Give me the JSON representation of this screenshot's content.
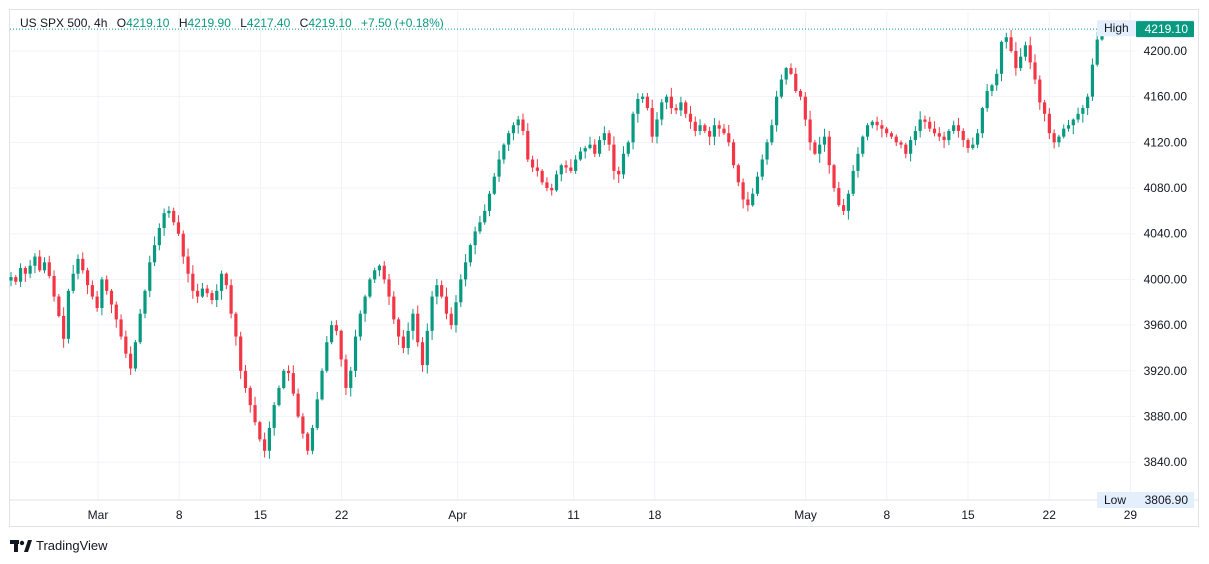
{
  "legend": {
    "symbol": "US SPX 500, 4h",
    "open_label": "O",
    "open": "4219.10",
    "high_label": "H",
    "high": "4219.90",
    "low_label": "L",
    "low": "4217.40",
    "close_label": "C",
    "close": "4219.10",
    "change": "+7.50 (+0.18%)"
  },
  "footer": {
    "brand": "TradingView"
  },
  "colors": {
    "up": "#089981",
    "down": "#f23645",
    "grid": "#f0f3fa",
    "axis_text": "#131722",
    "label_bg": "#e3effd"
  },
  "chart_data": {
    "type": "candlestick",
    "ylim": [
      3806.9,
      4235
    ],
    "y_ticks": [
      "3840.00",
      "3880.00",
      "3920.00",
      "3960.00",
      "4000.00",
      "4040.00",
      "4080.00",
      "4120.00",
      "4160.00",
      "4200.00"
    ],
    "x_ticks": [
      {
        "label": "Mar",
        "day": 0
      },
      {
        "label": "8",
        "day": 7
      },
      {
        "label": "15",
        "day": 14
      },
      {
        "label": "22",
        "day": 21
      },
      {
        "label": "Apr",
        "day": 31
      },
      {
        "label": "11",
        "day": 41
      },
      {
        "label": "18",
        "day": 48
      },
      {
        "label": "May",
        "day": 61
      },
      {
        "label": "8",
        "day": 68
      },
      {
        "label": "15",
        "day": 75
      },
      {
        "label": "22",
        "day": 82
      },
      {
        "label": "29",
        "day": 89
      }
    ],
    "high_label": "High",
    "high_value": "4219.90",
    "low_label": "Low",
    "low_value": "3806.90",
    "last_price": "4219.10",
    "closes": [
      4002,
      3998,
      4010,
      4005,
      4012,
      4020,
      4008,
      4015,
      4003,
      3985,
      3968,
      3948,
      3990,
      4005,
      4018,
      4008,
      3995,
      3985,
      3975,
      4000,
      3990,
      3978,
      3965,
      3950,
      3935,
      3922,
      3945,
      3970,
      3990,
      4015,
      4030,
      4045,
      4058,
      4060,
      4050,
      4040,
      4020,
      4005,
      3990,
      3985,
      3992,
      3988,
      3982,
      3990,
      4005,
      3995,
      3970,
      3950,
      3920,
      3905,
      3890,
      3875,
      3860,
      3850,
      3870,
      3890,
      3905,
      3920,
      3918,
      3900,
      3880,
      3865,
      3850,
      3870,
      3895,
      3920,
      3945,
      3960,
      3955,
      3930,
      3905,
      3920,
      3950,
      3970,
      3985,
      4000,
      4008,
      4012,
      4000,
      3985,
      3965,
      3950,
      3940,
      3955,
      3970,
      3945,
      3925,
      3955,
      3985,
      3995,
      3985,
      3970,
      3960,
      3980,
      4000,
      4015,
      4030,
      4042,
      4050,
      4060,
      4075,
      4090,
      4105,
      4118,
      4128,
      4135,
      4140,
      4130,
      4105,
      4098,
      4095,
      4085,
      4080,
      4078,
      4092,
      4100,
      4098,
      4095,
      4105,
      4112,
      4115,
      4118,
      4110,
      4122,
      4128,
      4118,
      4095,
      4092,
      4110,
      4120,
      4145,
      4158,
      4160,
      4150,
      4125,
      4140,
      4155,
      4160,
      4150,
      4148,
      4155,
      4145,
      4138,
      4130,
      4135,
      4130,
      4125,
      4135,
      4132,
      4128,
      4120,
      4100,
      4085,
      4070,
      4065,
      4075,
      4090,
      4105,
      4120,
      4135,
      4160,
      4175,
      4185,
      4180,
      4165,
      4160,
      4140,
      4120,
      4110,
      4118,
      4125,
      4100,
      4080,
      4065,
      4060,
      4075,
      4095,
      4110,
      4125,
      4135,
      4138,
      4135,
      4132,
      4128,
      4125,
      4120,
      4118,
      4110,
      4122,
      4130,
      4140,
      4138,
      4132,
      4128,
      4125,
      4122,
      4130,
      4135,
      4130,
      4122,
      4115,
      4118,
      4128,
      4150,
      4165,
      4170,
      4180,
      4208,
      4212,
      4200,
      4185,
      4195,
      4205,
      4190,
      4175,
      4155,
      4145,
      4128,
      4120,
      4125,
      4132,
      4135,
      4140,
      4145,
      4150,
      4160,
      4188,
      4210,
      4219.1
    ]
  }
}
